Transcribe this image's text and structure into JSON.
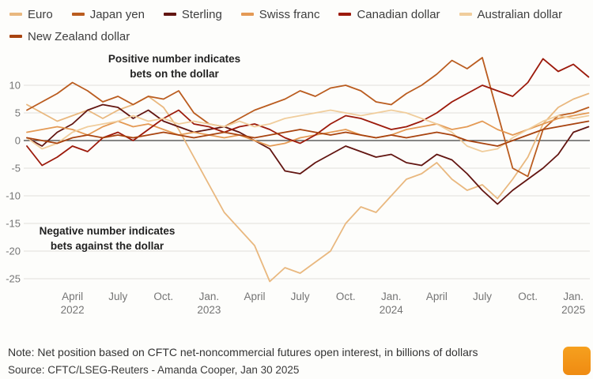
{
  "annotations": {
    "positive": {
      "line1": "Positive number indicates",
      "line2": "bets on the dollar"
    },
    "negative": {
      "line1": "Negative number indicates",
      "line2": "bets against the dollar"
    }
  },
  "note": "Note: Net position based on CFTC net-noncommercial futures open interest, in billions of dollars",
  "source": "Source: CFTC/LSEG-Reuters - Amanda Cooper, Jan 30 2025",
  "logo_color": "#F6A01E",
  "chart_data": {
    "type": "line",
    "title": "",
    "x_unit": "month index from Jan 2022 to end-Jan 2025",
    "ylim": [
      -27,
      16
    ],
    "yticks": [
      10,
      5,
      0,
      -5,
      -10,
      -15,
      -20,
      -25
    ],
    "grid": "horizontal only, zero line emphasized",
    "legend_position": "top",
    "xticks": [
      {
        "i": 3,
        "label": "April",
        "year": "2022"
      },
      {
        "i": 6,
        "label": "July"
      },
      {
        "i": 9,
        "label": "Oct."
      },
      {
        "i": 12,
        "label": "Jan.",
        "year": "2023"
      },
      {
        "i": 15,
        "label": "April"
      },
      {
        "i": 18,
        "label": "July"
      },
      {
        "i": 21,
        "label": "Oct."
      },
      {
        "i": 24,
        "label": "Jan.",
        "year": "2024"
      },
      {
        "i": 27,
        "label": "April"
      },
      {
        "i": 30,
        "label": "July"
      },
      {
        "i": 33,
        "label": "Oct."
      },
      {
        "i": 36,
        "label": "Jan.",
        "year": "2025"
      }
    ],
    "series": [
      {
        "name": "Euro",
        "color": "#E9B87F",
        "values": [
          6.5,
          5,
          3.5,
          4.5,
          5.5,
          4,
          5.5,
          6.5,
          8,
          6,
          2,
          -3,
          -8,
          -13,
          -16,
          -19,
          -25.5,
          -23,
          -24,
          -22,
          -20,
          -15,
          -12,
          -13,
          -10,
          -7,
          -6,
          -4,
          -7,
          -9,
          -8,
          -10.5,
          -7,
          -3,
          3,
          6,
          7.5,
          8.5
        ]
      },
      {
        "name": "Japan yen",
        "color": "#BA5C1F",
        "values": [
          5.5,
          7,
          8.5,
          10.5,
          9,
          7,
          8,
          6.5,
          8,
          7.5,
          9,
          5,
          3,
          2.5,
          4,
          5.5,
          6.5,
          7.5,
          9,
          8,
          9.5,
          10,
          9,
          7,
          6.5,
          8.5,
          10,
          12,
          14.5,
          13,
          15,
          5,
          -5,
          -6.5,
          2,
          4.5,
          5,
          6
        ]
      },
      {
        "name": "Sterling",
        "color": "#621511",
        "values": [
          0.5,
          -1,
          1.5,
          3,
          5.5,
          6.5,
          6,
          4,
          5.5,
          3.5,
          2.5,
          1.5,
          2,
          2.5,
          1.5,
          0,
          -1.5,
          -5.5,
          -6,
          -4,
          -2.5,
          -1,
          -2,
          -3,
          -2.5,
          -4,
          -4.5,
          -2.5,
          -3.5,
          -6,
          -9,
          -11.5,
          -9,
          -7,
          -5,
          -2.5,
          1.5,
          2.5
        ]
      },
      {
        "name": "Swiss franc",
        "color": "#E49A55",
        "values": [
          1.5,
          2,
          2.5,
          2,
          1,
          2.5,
          3.5,
          2.5,
          3,
          2,
          1,
          1.5,
          1,
          0.5,
          1,
          0,
          -1,
          -0.5,
          0.5,
          1,
          1.5,
          2,
          1,
          0.5,
          1,
          2,
          2.5,
          3,
          2,
          2.5,
          3.5,
          2,
          1,
          2,
          3,
          4,
          4.5,
          5
        ]
      },
      {
        "name": "Canadian dollar",
        "color": "#9C1A0B",
        "values": [
          -1,
          -4.5,
          -3,
          -1,
          -2,
          0.5,
          1.5,
          0,
          2,
          4,
          5.5,
          3,
          2.5,
          1.5,
          2.5,
          3,
          2,
          0.5,
          -0.5,
          1,
          3,
          4.5,
          4,
          3,
          2,
          2.5,
          3.5,
          5,
          7,
          8.5,
          10,
          9,
          8,
          10.5,
          14.8,
          12.5,
          13.8,
          11.5
        ]
      },
      {
        "name": "Australian dollar",
        "color": "#F0CD9C",
        "values": [
          0.5,
          -1.5,
          -0.5,
          1.5,
          2.5,
          3,
          3.5,
          4.5,
          3.5,
          4,
          3,
          3.5,
          3,
          2.5,
          3.5,
          2.5,
          3,
          4,
          4.5,
          5,
          5.5,
          5,
          4.5,
          5,
          5.5,
          5,
          4,
          3,
          1.5,
          -1,
          -2,
          -1.5,
          0.5,
          2,
          3.5,
          4.5,
          4,
          4.5
        ]
      },
      {
        "name": "New Zealand dollar",
        "color": "#A8430F",
        "values": [
          0.5,
          0,
          -0.5,
          0.5,
          1,
          0.5,
          1,
          0.5,
          1,
          1.5,
          1,
          0.5,
          1,
          1.5,
          1,
          0.5,
          1,
          1.5,
          2,
          1.5,
          1,
          1.5,
          1,
          0.5,
          1,
          0.5,
          1,
          1.5,
          1,
          0,
          -0.5,
          -1,
          0,
          1,
          2,
          2.5,
          3,
          3.5
        ]
      }
    ]
  }
}
